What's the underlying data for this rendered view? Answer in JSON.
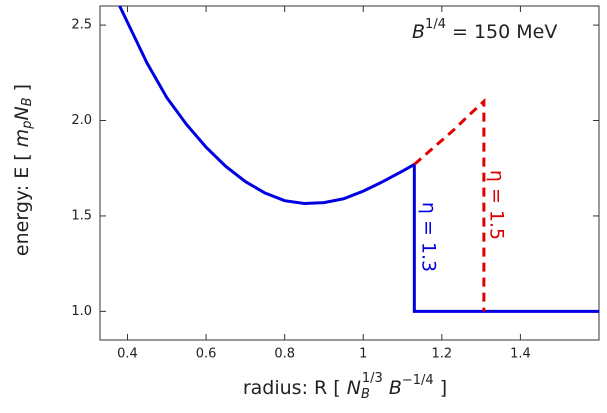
{
  "chart_data": {
    "type": "line",
    "xlabel": [
      "radius:  R  [ ",
      "N",
      "B",
      "1/3",
      "  B",
      "−1/4",
      " ]"
    ],
    "ylabel": [
      "energy:  E  [ ",
      "m",
      "p",
      "N",
      "B",
      " ]"
    ],
    "annotations": [
      {
        "text": "B",
        "sup": "1/4",
        "rest": " = 150 MeV"
      },
      {
        "text": "η = 1.3"
      },
      {
        "text": "η = 1.5"
      }
    ],
    "xlim": [
      0.33,
      1.6
    ],
    "ylim": [
      0.85,
      2.6
    ],
    "xticks": [
      0.4,
      0.6,
      0.8,
      1.0,
      1.2,
      1.4
    ],
    "yticks": [
      {
        "value": 1,
        "label": "1.0"
      },
      1.5,
      {
        "value": 2,
        "label": "2.0"
      },
      2.5
    ],
    "series": [
      {
        "color": "#0000e0",
        "dashed": false,
        "x": [
          0.38,
          0.45,
          0.5,
          0.55,
          0.6,
          0.65,
          0.7,
          0.75,
          0.8,
          0.85,
          0.9,
          0.95,
          1.0,
          1.05,
          1.1,
          1.13,
          1.13,
          1.6
        ],
        "values": [
          2.6,
          2.3,
          2.12,
          1.98,
          1.86,
          1.76,
          1.68,
          1.62,
          1.58,
          1.565,
          1.57,
          1.59,
          1.63,
          1.68,
          1.735,
          1.77,
          1.0,
          1.0
        ]
      },
      {
        "color": "#e00000",
        "dashed": true,
        "x": [
          1.13,
          1.18,
          1.23,
          1.27,
          1.307,
          1.307
        ],
        "values": [
          1.77,
          1.86,
          1.95,
          2.03,
          2.1,
          1.0
        ]
      }
    ]
  }
}
